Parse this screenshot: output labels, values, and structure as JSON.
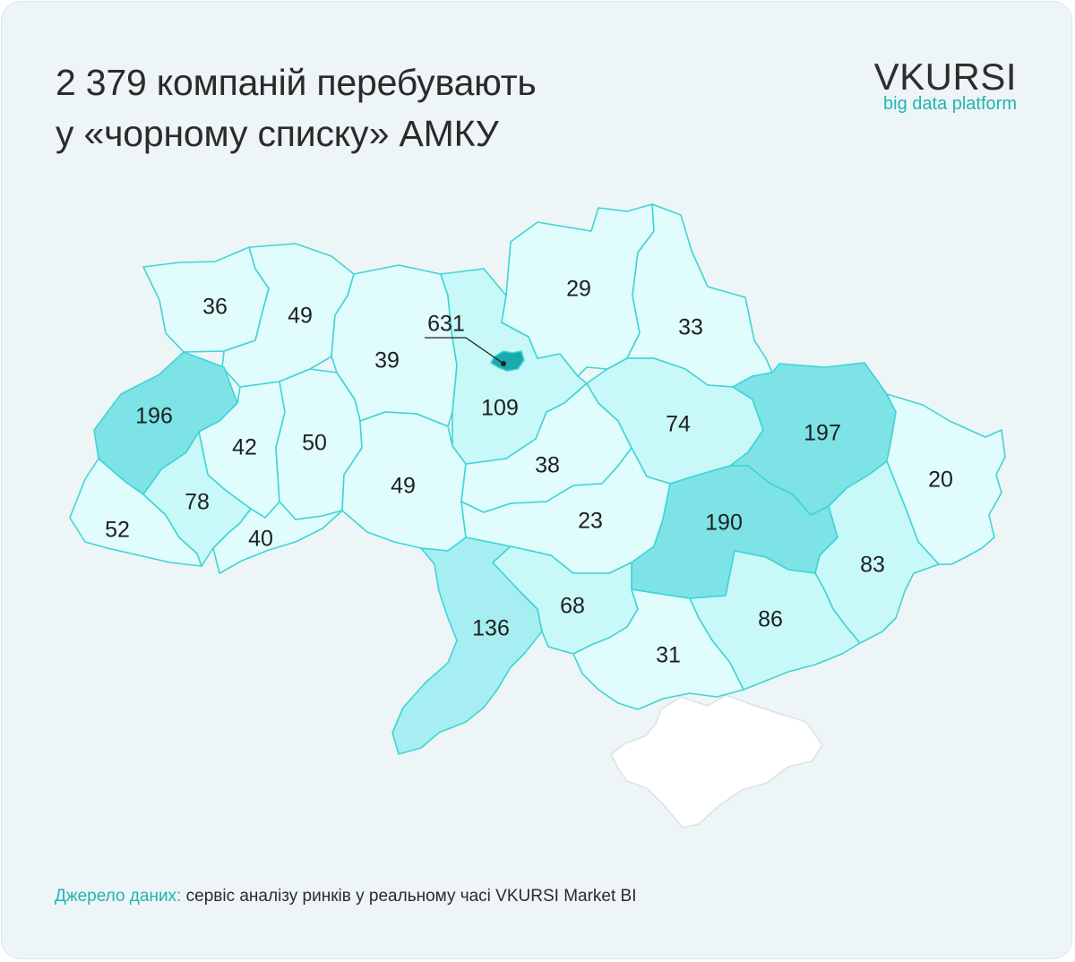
{
  "title": {
    "line1": "2 379 компаній перебувають",
    "line2": "у «чорному списку» АМКУ"
  },
  "logo": {
    "name": "VKURSI",
    "tagline": "big data platform"
  },
  "source": {
    "label": "Джерело даних:",
    "text": " сервіс аналізу ринків у реальному часі VKURSI Market BI"
  },
  "colors": {
    "background": "#eef5f7",
    "accent": "#1fb5b0",
    "border": "#3fd4d6",
    "scale_low": "#e0fcfc",
    "scale_mid": "#c9f8f8",
    "scale_high": "#a6eef1",
    "scale_top": "#7de3e6",
    "capital": "#1aa9ad"
  },
  "regions": [
    {
      "id": "volyn",
      "value": "36",
      "level": "low"
    },
    {
      "id": "rivne",
      "value": "49",
      "level": "low"
    },
    {
      "id": "zhytomyr",
      "value": "39",
      "level": "low"
    },
    {
      "id": "kyiv-oblast",
      "value": "109",
      "level": "mid"
    },
    {
      "id": "kyiv-city",
      "value": "631",
      "level": "capital"
    },
    {
      "id": "chernihiv",
      "value": "29",
      "level": "low"
    },
    {
      "id": "sumy",
      "value": "33",
      "level": "low"
    },
    {
      "id": "lviv",
      "value": "196",
      "level": "top"
    },
    {
      "id": "ternopil",
      "value": "42",
      "level": "low"
    },
    {
      "id": "khmelnytskyi",
      "value": "50",
      "level": "low"
    },
    {
      "id": "vinnytsia",
      "value": "49",
      "level": "low"
    },
    {
      "id": "cherkasy",
      "value": "38",
      "level": "low"
    },
    {
      "id": "poltava",
      "value": "74",
      "level": "mid"
    },
    {
      "id": "kharkiv",
      "value": "197",
      "level": "top"
    },
    {
      "id": "luhansk",
      "value": "20",
      "level": "low"
    },
    {
      "id": "zakarpattia",
      "value": "52",
      "level": "low"
    },
    {
      "id": "ivano-frankivsk",
      "value": "78",
      "level": "mid"
    },
    {
      "id": "chernivtsi",
      "value": "40",
      "level": "low"
    },
    {
      "id": "kirovohrad",
      "value": "23",
      "level": "low"
    },
    {
      "id": "dnipropetrovsk",
      "value": "190",
      "level": "top"
    },
    {
      "id": "donetsk",
      "value": "83",
      "level": "mid"
    },
    {
      "id": "odesa",
      "value": "136",
      "level": "high"
    },
    {
      "id": "mykolaiv",
      "value": "68",
      "level": "mid"
    },
    {
      "id": "zaporizhzhia",
      "value": "86",
      "level": "mid"
    },
    {
      "id": "kherson",
      "value": "31",
      "level": "low"
    }
  ]
}
